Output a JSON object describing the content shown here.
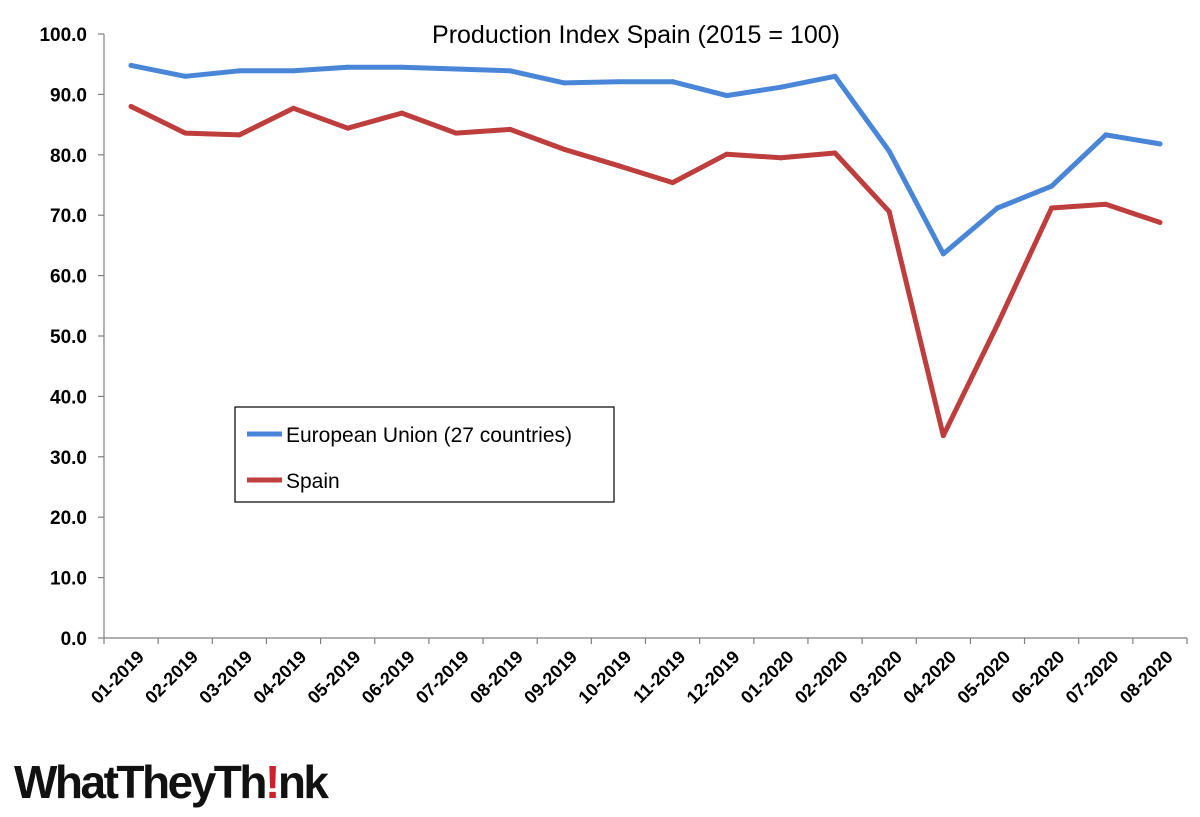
{
  "chart_data": {
    "type": "line",
    "title": "Production Index Spain (2015 = 100)",
    "xlabel": "",
    "ylabel": "",
    "categories": [
      "01-2019",
      "02-2019",
      "03-2019",
      "04-2019",
      "05-2019",
      "06-2019",
      "07-2019",
      "08-2019",
      "09-2019",
      "10-2019",
      "11-2019",
      "12-2019",
      "01-2020",
      "02-2020",
      "03-2020",
      "04-2020",
      "05-2020",
      "06-2020",
      "07-2020",
      "08-2020"
    ],
    "ylim": [
      0,
      100
    ],
    "yticks": [
      "0.0",
      "10.0",
      "20.0",
      "30.0",
      "40.0",
      "50.0",
      "60.0",
      "70.0",
      "80.0",
      "90.0",
      "100.0"
    ],
    "series": [
      {
        "name": "European Union (27 countries)",
        "color": "#4a86d8",
        "values": [
          94.8,
          93.0,
          93.9,
          93.9,
          94.5,
          94.5,
          94.2,
          93.9,
          91.9,
          92.1,
          92.1,
          89.8,
          91.2,
          93.0,
          80.6,
          63.6,
          71.2,
          74.8,
          83.3,
          81.8
        ]
      },
      {
        "name": "Spain",
        "color": "#be3d3d",
        "values": [
          88.0,
          83.6,
          83.3,
          87.7,
          84.4,
          86.9,
          83.6,
          84.2,
          80.9,
          78.2,
          75.4,
          80.1,
          79.5,
          80.3,
          70.6,
          33.5,
          51.9,
          71.2,
          71.8,
          68.8
        ]
      }
    ],
    "legend": "inside, middle-left",
    "grid": false
  },
  "logo": {
    "pre": "WhatTheyTh",
    "mark": "!",
    "post": "nk"
  }
}
